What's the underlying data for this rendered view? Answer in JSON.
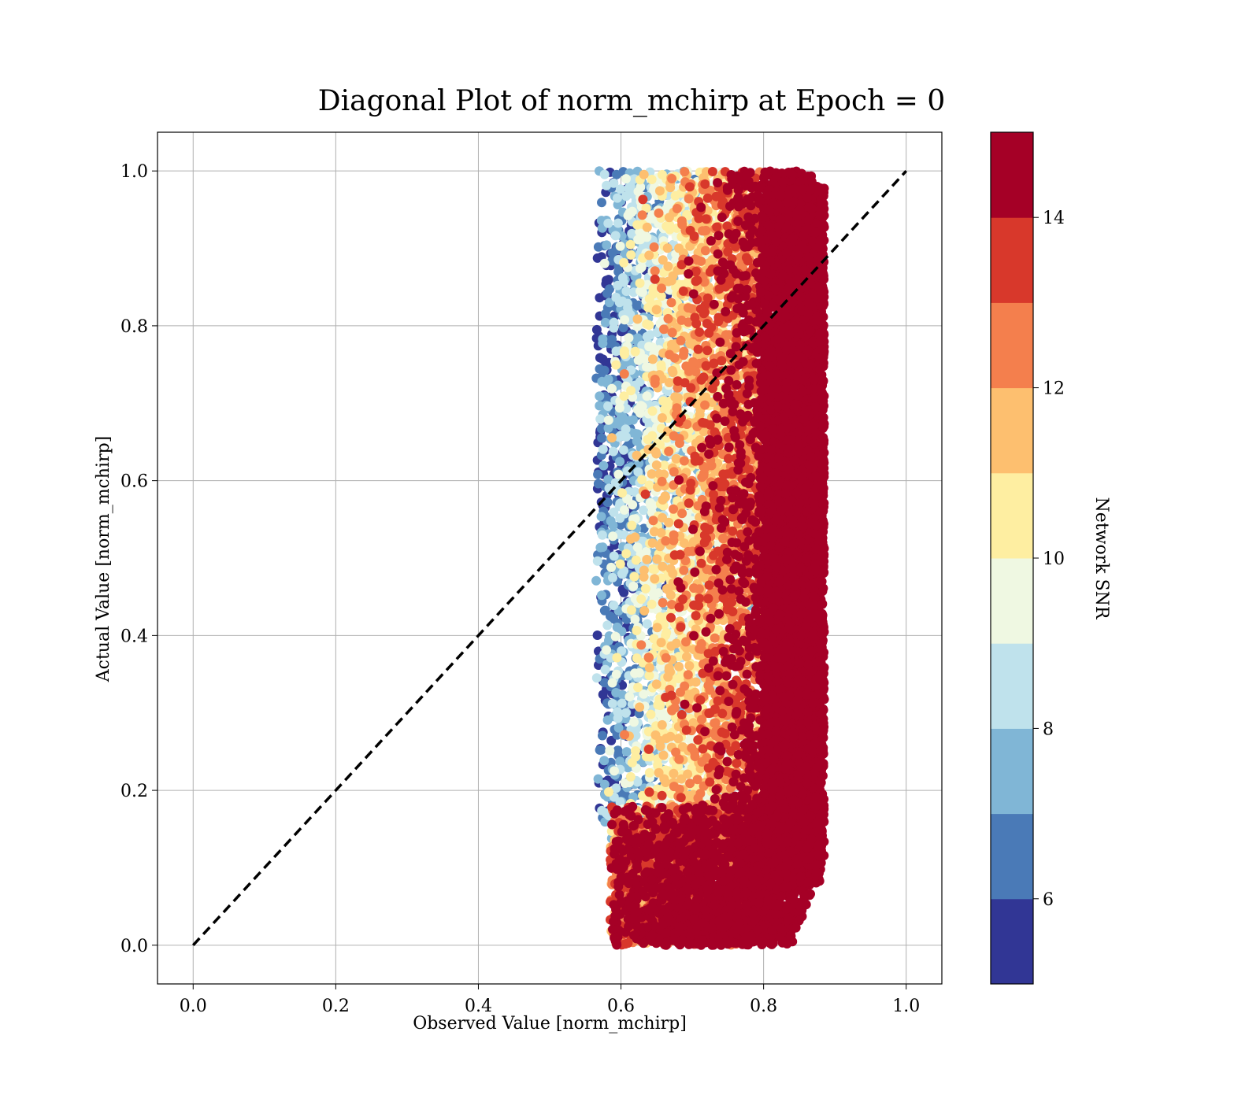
{
  "chart_data": {
    "type": "scatter",
    "title": "Diagonal Plot of norm_mchirp at Epoch = 0",
    "xlabel": "Observed Value [norm_mchirp]",
    "ylabel": "Actual Value [norm_mchirp]",
    "xlim": [
      -0.05,
      1.05
    ],
    "ylim": [
      -0.05,
      1.05
    ],
    "x_ticks": [
      "0.0",
      "0.2",
      "0.4",
      "0.6",
      "0.8",
      "1.0"
    ],
    "y_ticks": [
      "0.0",
      "0.2",
      "0.4",
      "0.6",
      "0.8",
      "1.0"
    ],
    "grid": true,
    "reference_line": {
      "style": "dashed",
      "color": "#000000",
      "from": [
        0,
        0
      ],
      "to": [
        1,
        1
      ]
    },
    "colorbar": {
      "label": "Network SNR",
      "range": [
        5,
        15
      ],
      "ticks": [
        "6",
        "8",
        "10",
        "12",
        "14"
      ],
      "bins": [
        {
          "from": 5,
          "to": 6,
          "color": "#313695"
        },
        {
          "from": 6,
          "to": 7,
          "color": "#4a7ab7"
        },
        {
          "from": 7,
          "to": 8,
          "color": "#80b6d6"
        },
        {
          "from": 8,
          "to": 9,
          "color": "#bfe2ec"
        },
        {
          "from": 9,
          "to": 10,
          "color": "#eff8e2"
        },
        {
          "from": 10,
          "to": 11,
          "color": "#feeea1"
        },
        {
          "from": 11,
          "to": 12,
          "color": "#fdbf6f"
        },
        {
          "from": 12,
          "to": 13,
          "color": "#f47f4d"
        },
        {
          "from": 13,
          "to": 14,
          "color": "#d8382b"
        },
        {
          "from": 14,
          "to": 15,
          "color": "#a50026"
        }
      ]
    },
    "point_cloud": {
      "x_range": [
        0.55,
        0.91
      ],
      "y_range": [
        0.0,
        1.0
      ],
      "dense_high_snr_x_range": [
        0.8,
        0.89
      ],
      "trend": "low SNR points at low observed values (~0.56-0.65); high SNR points concentrated at observed ~0.8-0.89 across all actual values; bottom-left region (observed 0.57-0.75, actual 0.0-0.2) dominated by high SNR"
    }
  }
}
